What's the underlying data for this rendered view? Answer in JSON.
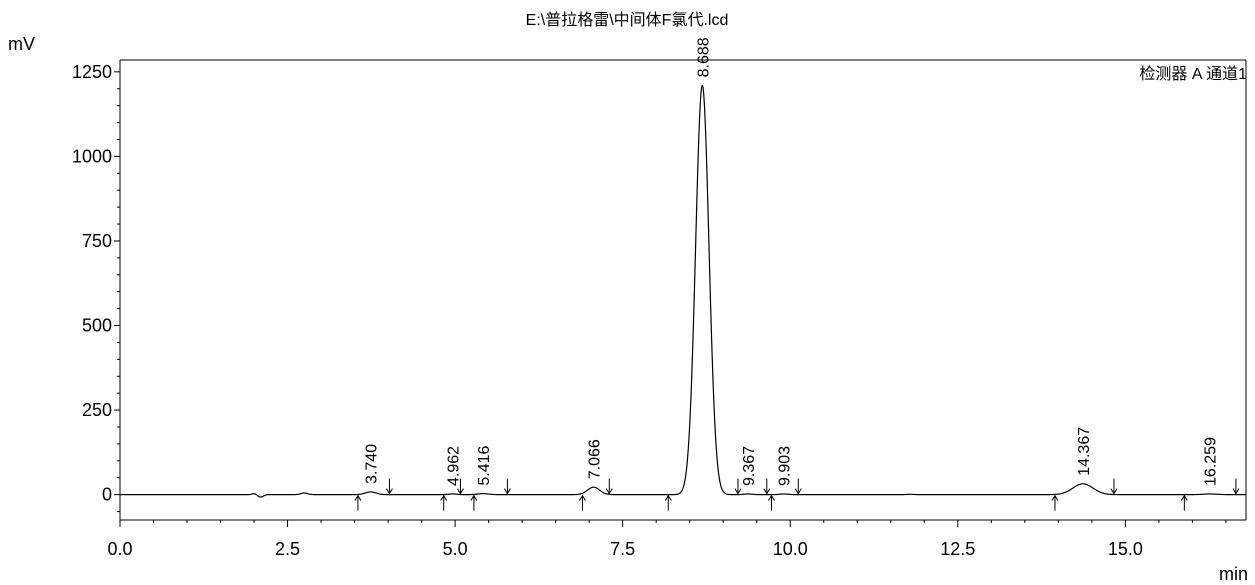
{
  "chart_data": {
    "type": "line",
    "title": "E:\\普拉格雷\\中间体F氯代.lcd",
    "xlabel": "min",
    "ylabel": "mV",
    "legend": "检测器 A 通道1",
    "xlim": [
      0,
      16.8
    ],
    "ylim": [
      -75,
      1285
    ],
    "x_ticks": [
      0.0,
      2.5,
      5.0,
      7.5,
      10.0,
      12.5,
      15.0
    ],
    "x_tick_labels": [
      "0.0",
      "2.5",
      "5.0",
      "7.5",
      "10.0",
      "12.5",
      "15.0"
    ],
    "y_ticks": [
      0,
      250,
      500,
      750,
      1000,
      1250
    ],
    "y_tick_labels": [
      "0",
      "250",
      "500",
      "750",
      "1000",
      "1250"
    ],
    "baseline": 0,
    "peaks": [
      {
        "rt": 3.74,
        "label": "3.740",
        "height": 8,
        "width": 0.08
      },
      {
        "rt": 4.962,
        "label": "4.962",
        "height": 2,
        "width": 0.06
      },
      {
        "rt": 5.416,
        "label": "5.416",
        "height": 3,
        "width": 0.08
      },
      {
        "rt": 7.066,
        "label": "7.066",
        "height": 22,
        "width": 0.09
      },
      {
        "rt": 8.688,
        "label": "8.688",
        "height": 1210,
        "width": 0.1
      },
      {
        "rt": 9.367,
        "label": "9.367",
        "height": 2,
        "width": 0.06
      },
      {
        "rt": 9.903,
        "label": "9.903",
        "height": 2,
        "width": 0.06
      },
      {
        "rt": 14.367,
        "label": "14.367",
        "height": 32,
        "width": 0.15
      },
      {
        "rt": 16.259,
        "label": "16.259",
        "height": 2,
        "width": 0.1
      }
    ],
    "artifacts": [
      {
        "rt": 2.0,
        "height": 3,
        "width": 0.03
      },
      {
        "rt": 2.1,
        "height": -7,
        "width": 0.04
      },
      {
        "rt": 2.75,
        "height": 5,
        "width": 0.05
      },
      {
        "rt": 11.8,
        "height": 1,
        "width": 0.05
      }
    ],
    "integration_starts": [
      3.55,
      4.83,
      5.28,
      6.9,
      8.18,
      9.72,
      13.95,
      15.88
    ],
    "integration_ends": [
      4.02,
      5.08,
      5.78,
      7.3,
      9.22,
      9.65,
      10.12,
      14.83,
      16.65
    ]
  }
}
